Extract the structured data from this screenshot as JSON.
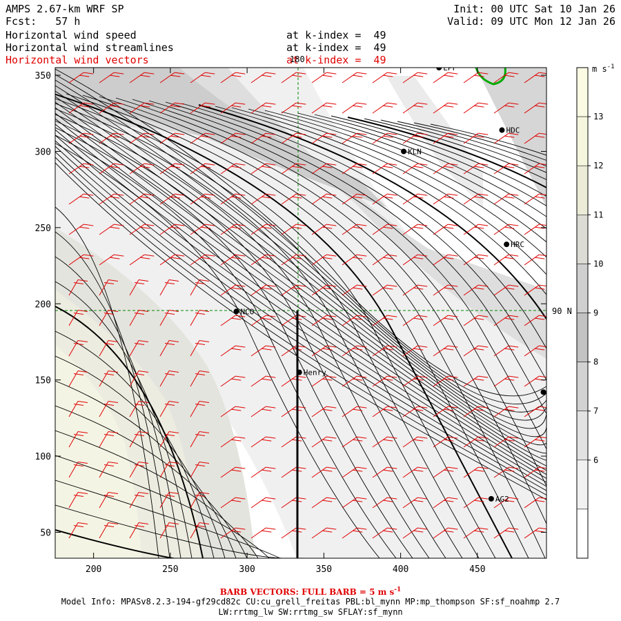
{
  "header": {
    "model": "AMPS 2.67-km WRF SP",
    "fcst": "Fcst:   57 h",
    "init": "Init: 00 UTC Sat 10 Jan 26",
    "valid": "Valid: 09 UTC Mon 12 Jan 26",
    "lines": [
      {
        "label": "Horizontal wind speed",
        "level": "at k-index =  49"
      },
      {
        "label": "Horizontal wind streamlines",
        "level": "at k-index =  49"
      },
      {
        "label": "Horizontal wind vectors",
        "level": "at k-index =  49"
      }
    ]
  },
  "axes": {
    "x_ticks": [
      "200",
      "250",
      "300",
      "350",
      "400",
      "450"
    ],
    "y_ticks": [
      "350",
      "300",
      "250",
      "200",
      "150",
      "100",
      "50"
    ],
    "x_range": [
      175,
      495
    ],
    "y_range": [
      33,
      355
    ]
  },
  "gridlines": {
    "lon_label": "180",
    "lat_label": "90 N"
  },
  "stations": [
    {
      "name": "LPF",
      "x": 425,
      "y": 355
    },
    {
      "name": "HDC",
      "x": 466,
      "y": 314
    },
    {
      "name": "KLN",
      "x": 402,
      "y": 300
    },
    {
      "name": "HRC",
      "x": 469,
      "y": 239
    },
    {
      "name": "NCO",
      "x": 293,
      "y": 195
    },
    {
      "name": "Henry",
      "x": 334,
      "y": 155
    },
    {
      "name": "AG2",
      "x": 459,
      "y": 72
    },
    {
      "name": "",
      "x": 493,
      "y": 142
    }
  ],
  "colorbar": {
    "unit": "m s",
    "unit_exp": "-1",
    "labels": [
      "13",
      "12",
      "11",
      "10",
      "9",
      "8",
      "7",
      "6"
    ],
    "colors": [
      "#fbfbe4",
      "#f6f6df",
      "#ebebd8",
      "#dcdcd5",
      "#cfcfcf",
      "#c2c2c2",
      "#d2d2d2",
      "#e2e2e2",
      "#f1f1f1",
      "#ffffff"
    ]
  },
  "footer": {
    "barb": "BARB VECTORS:  FULL BARB = 5 m s",
    "barb_exp": "-1",
    "model_info": "Model Info: MPASv8.2.3-194-gf29cd82c CU:cu_grell_freitas PBL:bl_mynn MP:mp_thompson SF:sf_noahmp 2.7",
    "model_info2": "LW:rrtmg_lw SW:rrtmg_sw SFLAY:sf_mynn"
  }
}
